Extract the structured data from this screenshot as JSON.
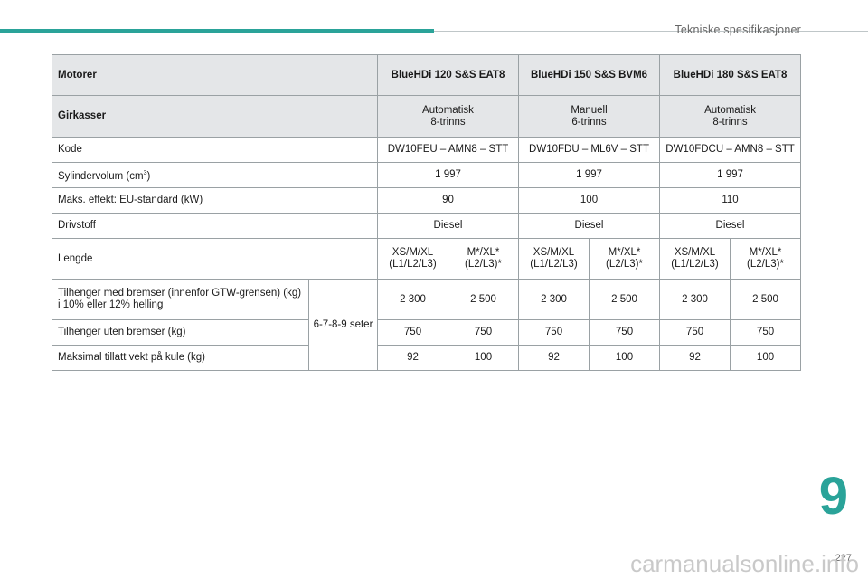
{
  "header": {
    "section_title": "Tekniske spesifikasjoner"
  },
  "table": {
    "motor_label": "Motorer",
    "engines": [
      "BlueHDi 120 S&S EAT8",
      "BlueHDi 150 S&S BVM6",
      "BlueHDi 180 S&S EAT8"
    ],
    "gearbox_label": "Girkasser",
    "gearboxes": [
      {
        "line1": "Automatisk",
        "line2": "8-trinns"
      },
      {
        "line1": "Manuell",
        "line2": "6-trinns"
      },
      {
        "line1": "Automatisk",
        "line2": "8-trinns"
      }
    ],
    "code_label": "Kode",
    "codes": [
      "DW10FEU – AMN8 – STT",
      "DW10FDU – ML6V – STT",
      "DW10FDCU – AMN8 – STT"
    ],
    "displacement_label": "Sylindervolum (cm",
    "displacement_sup": "3",
    "displacement_suffix": ")",
    "displacement": [
      "1 997",
      "1 997",
      "1 997"
    ],
    "power_label": "Maks. effekt: EU-standard (kW)",
    "power": [
      "90",
      "100",
      "110"
    ],
    "fuel_label": "Drivstoff",
    "fuel": [
      "Diesel",
      "Diesel",
      "Diesel"
    ],
    "length_label": "Lengde",
    "lengths": [
      {
        "line1": "XS/M/XL",
        "line2": "(L1/L2/L3)"
      },
      {
        "line1": "M*/XL*",
        "line2": "(L2/L3)*"
      },
      {
        "line1": "XS/M/XL",
        "line2": "(L1/L2/L3)"
      },
      {
        "line1": "M*/XL*",
        "line2": "(L2/L3)*"
      },
      {
        "line1": "XS/M/XL",
        "line2": "(L1/L2/L3)"
      },
      {
        "line1": "M*/XL*",
        "line2": "(L2/L3)*"
      }
    ],
    "seats": "6-7-8-9 seter",
    "braked_trailer_label_1": "Tilhenger med bremser (innenfor GTW-grensen) (kg)",
    "braked_trailer_label_2": "i 10% eller 12% helling",
    "braked_trailer": [
      "2 300",
      "2 500",
      "2 300",
      "2 500",
      "2 300",
      "2 500"
    ],
    "unbraked_trailer_label": "Tilhenger uten bremser (kg)",
    "unbraked_trailer": [
      "750",
      "750",
      "750",
      "750",
      "750",
      "750"
    ],
    "towball_label": "Maksimal tillatt vekt på kule (kg)",
    "towball": [
      "92",
      "100",
      "92",
      "100",
      "92",
      "100"
    ]
  },
  "footer": {
    "chapter": "9",
    "page": "227",
    "watermark": "carmanualsonline.info"
  },
  "colors": {
    "accent": "#2aa399",
    "header_bg": "#e4e6e8"
  }
}
